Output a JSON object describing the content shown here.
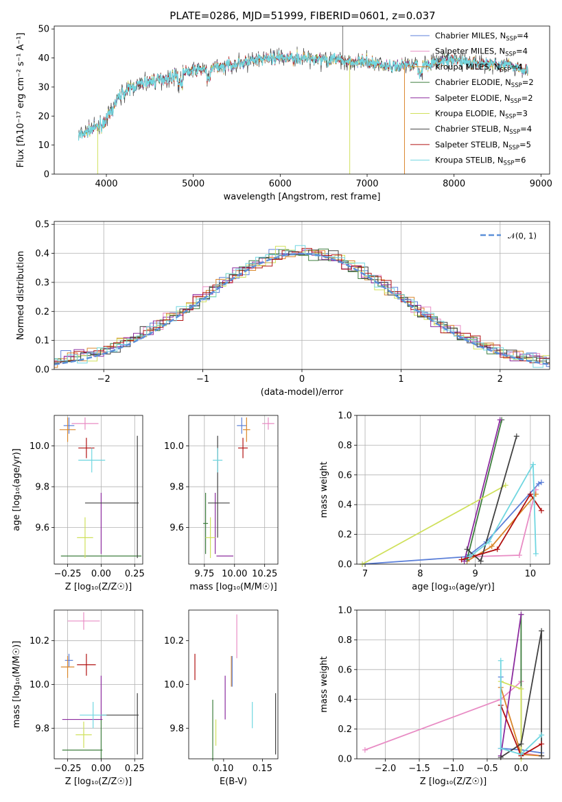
{
  "figure": {
    "title": "PLATE=0286, MJD=51999, FIBERID=0601, z=0.037"
  },
  "colors": {
    "chabrier_miles": "#5b7fd8",
    "salpeter_miles": "#e88bc4",
    "kroupa_miles": "#d9862a",
    "chabrier_elodie": "#3d7d3d",
    "salpeter_elodie": "#8b2a9e",
    "kroupa_elodie": "#cfe05a",
    "chabrier_stelib": "#404040",
    "salpeter_stelib": "#b01010",
    "kroupa_stelib": "#6fd6e0"
  },
  "chart_data": [
    {
      "id": "spectrum",
      "type": "line",
      "xlabel": "wavelength [Angstrom, rest frame]",
      "ylabel": "Flux [fλ10⁻¹⁷ erg cm⁻² s⁻¹ A⁻¹]",
      "xlim": [
        3400,
        9100
      ],
      "ylim": [
        0,
        51
      ],
      "xticks": [
        4000,
        5000,
        6000,
        7000,
        8000,
        9000
      ],
      "yticks": [
        0,
        10,
        20,
        30,
        40,
        50
      ],
      "legend_position": "top-right",
      "legend": [
        {
          "label": "Chabrier MILES, N",
          "sub": "SSP",
          "suffix": "=4",
          "color_key": "chabrier_miles"
        },
        {
          "label": "Salpeter MILES, N",
          "sub": "SSP",
          "suffix": "=4",
          "color_key": "salpeter_miles"
        },
        {
          "label": "Kroupa MILES, N",
          "sub": "SSP",
          "suffix": "=4",
          "color_key": "kroupa_miles"
        },
        {
          "label": "Chabrier ELODIE, N",
          "sub": "SSP",
          "suffix": "=2",
          "color_key": "chabrier_elodie"
        },
        {
          "label": "Salpeter ELODIE, N",
          "sub": "SSP",
          "suffix": "=2",
          "color_key": "salpeter_elodie"
        },
        {
          "label": "Kroupa ELODIE, N",
          "sub": "SSP",
          "suffix": "=3",
          "color_key": "kroupa_elodie"
        },
        {
          "label": "Chabrier STELIB, N",
          "sub": "SSP",
          "suffix": "=4",
          "color_key": "chabrier_stelib"
        },
        {
          "label": "Salpeter STELIB, N",
          "sub": "SSP",
          "suffix": "=5",
          "color_key": "salpeter_stelib"
        },
        {
          "label": "Kroupa STELIB, N",
          "sub": "SSP",
          "suffix": "=6",
          "color_key": "kroupa_stelib"
        }
      ],
      "continuum": [
        [
          3680,
          13
        ],
        [
          3800,
          15
        ],
        [
          3950,
          17
        ],
        [
          4050,
          21
        ],
        [
          4150,
          27
        ],
        [
          4300,
          30
        ],
        [
          4500,
          32
        ],
        [
          4700,
          33
        ],
        [
          4900,
          35
        ],
        [
          5100,
          36
        ],
        [
          5300,
          37
        ],
        [
          5500,
          38
        ],
        [
          5700,
          39
        ],
        [
          5900,
          40
        ],
        [
          6100,
          40
        ],
        [
          6300,
          40
        ],
        [
          6500,
          40
        ],
        [
          6700,
          39
        ],
        [
          6900,
          39
        ],
        [
          7100,
          38
        ],
        [
          7300,
          37
        ],
        [
          7500,
          38
        ],
        [
          7700,
          38
        ],
        [
          7900,
          39
        ],
        [
          8100,
          39
        ],
        [
          8300,
          38
        ],
        [
          8500,
          38
        ],
        [
          8700,
          37
        ],
        [
          8850,
          36
        ]
      ],
      "drops": [
        {
          "x": 3900,
          "color_key": "kroupa_elodie"
        },
        {
          "x": 6800,
          "color_key": "kroupa_elodie"
        },
        {
          "x": 7430,
          "color_key": "kroupa_miles"
        }
      ]
    },
    {
      "id": "residual_hist",
      "type": "bar",
      "xlabel": "(data-model)/error",
      "ylabel": "Normed distribution",
      "xlim": [
        -2.5,
        2.5
      ],
      "ylim": [
        0,
        0.51
      ],
      "xticks": [
        -2,
        -1,
        0,
        1,
        2
      ],
      "yticks": [
        0.0,
        0.1,
        0.2,
        0.3,
        0.4,
        0.5
      ],
      "legend_position": "top-right",
      "legend": [
        {
          "label": "𝒩(0, 1)",
          "style": "dashed",
          "color": "#5b8fd8"
        }
      ],
      "bin_width": 0.1
    },
    {
      "id": "age_vs_z",
      "type": "scatter",
      "xlabel": "Z [log₁₀(Z/Z☉)]",
      "ylabel": "age  [log₁₀(age/yr)]",
      "xlim": [
        -0.35,
        0.31
      ],
      "ylim": [
        9.42,
        10.15
      ],
      "xticks": [
        -0.25,
        0.0,
        0.25
      ],
      "yticks": [
        9.6,
        9.8,
        10.0
      ],
      "points": [
        {
          "color_key": "chabrier_miles",
          "x": -0.24,
          "xerr": 0.04,
          "y": 10.1,
          "yerr": 0.04
        },
        {
          "color_key": "salpeter_miles",
          "x": -0.12,
          "xerr": 0.1,
          "y": 10.11,
          "yerr": 0.03
        },
        {
          "color_key": "kroupa_miles",
          "x": -0.25,
          "xerr": 0.06,
          "y": 10.08,
          "yerr": 0.06
        },
        {
          "color_key": "chabrier_elodie",
          "x": 0.0,
          "xerr": 0.3,
          "y": 9.46,
          "yerr": 0.0
        },
        {
          "color_key": "salpeter_elodie",
          "x": 0.0,
          "xerr": 0.0,
          "y": 9.62,
          "yerr": 0.15
        },
        {
          "color_key": "kroupa_elodie",
          "x": -0.12,
          "xerr": 0.06,
          "y": 9.55,
          "yerr": 0.1
        },
        {
          "color_key": "chabrier_stelib",
          "x": 0.27,
          "xerr": 0.0,
          "y": 9.75,
          "yerr": 0.3
        },
        {
          "color_key": "chabrier_stelib",
          "x": 0.08,
          "xerr": 0.2,
          "y": 9.72,
          "yerr": 0.0
        },
        {
          "color_key": "salpeter_stelib",
          "x": -0.11,
          "xerr": 0.06,
          "y": 9.99,
          "yerr": 0.05
        },
        {
          "color_key": "kroupa_stelib",
          "x": -0.07,
          "xerr": 0.1,
          "y": 9.93,
          "yerr": 0.06
        }
      ]
    },
    {
      "id": "age_vs_mass",
      "type": "scatter",
      "xlabel": "mass [log₁₀(M/M☉)]",
      "ylabel": "",
      "xlim": [
        9.62,
        10.36
      ],
      "ylim": [
        9.42,
        10.15
      ],
      "xticks": [
        9.75,
        10.0,
        10.25
      ],
      "yticks": [
        9.6,
        9.8,
        10.0
      ],
      "points": [
        {
          "color_key": "chabrier_miles",
          "x": 10.06,
          "xerr": 0.04,
          "y": 10.1,
          "yerr": 0.04
        },
        {
          "color_key": "salpeter_miles",
          "x": 10.28,
          "xerr": 0.05,
          "y": 10.11,
          "yerr": 0.03
        },
        {
          "color_key": "kroupa_miles",
          "x": 10.1,
          "xerr": 0.03,
          "y": 10.08,
          "yerr": 0.06
        },
        {
          "color_key": "chabrier_elodie",
          "x": 9.76,
          "xerr": 0.02,
          "y": 9.62,
          "yerr": 0.15
        },
        {
          "color_key": "salpeter_elodie",
          "x": 9.92,
          "xerr": 0.07,
          "y": 9.46,
          "yerr": 0.0
        },
        {
          "color_key": "salpeter_elodie",
          "x": 9.84,
          "xerr": 0.0,
          "y": 9.62,
          "yerr": 0.15
        },
        {
          "color_key": "kroupa_elodie",
          "x": 9.8,
          "xerr": 0.04,
          "y": 9.55,
          "yerr": 0.1
        },
        {
          "color_key": "chabrier_stelib",
          "x": 9.87,
          "xerr": 0.09,
          "y": 9.72,
          "yerr": 0.0
        },
        {
          "color_key": "chabrier_stelib",
          "x": 9.86,
          "xerr": 0.0,
          "y": 9.8,
          "yerr": 0.25
        },
        {
          "color_key": "salpeter_stelib",
          "x": 10.07,
          "xerr": 0.04,
          "y": 9.99,
          "yerr": 0.05
        },
        {
          "color_key": "kroupa_stelib",
          "x": 9.86,
          "xerr": 0.04,
          "y": 9.93,
          "yerr": 0.06
        }
      ]
    },
    {
      "id": "weight_vs_age",
      "type": "line",
      "xlabel": "age  [log₁₀(age/yr)]",
      "ylabel": "mass weight",
      "xlim": [
        6.85,
        10.35
      ],
      "ylim": [
        0,
        1
      ],
      "xticks": [
        7,
        8,
        9,
        10
      ],
      "yticks": [
        0.0,
        0.2,
        0.4,
        0.6,
        0.8,
        1.0
      ],
      "series": [
        {
          "color_key": "chabrier_miles",
          "points": [
            [
              6.95,
              0.0
            ],
            [
              8.85,
              0.05
            ],
            [
              9.2,
              0.15
            ],
            [
              10.15,
              0.54
            ],
            [
              10.2,
              0.55
            ]
          ]
        },
        {
          "color_key": "salpeter_miles",
          "points": [
            [
              8.9,
              0.05
            ],
            [
              9.8,
              0.06
            ],
            [
              10.1,
              0.5
            ]
          ]
        },
        {
          "color_key": "kroupa_miles",
          "points": [
            [
              8.85,
              0.02
            ],
            [
              9.3,
              0.12
            ],
            [
              10.1,
              0.47
            ]
          ]
        },
        {
          "color_key": "chabrier_elodie",
          "points": [
            [
              8.85,
              0.03
            ],
            [
              9.48,
              0.97
            ]
          ]
        },
        {
          "color_key": "salpeter_elodie",
          "points": [
            [
              8.8,
              0.02
            ],
            [
              9.45,
              0.97
            ]
          ]
        },
        {
          "color_key": "kroupa_elodie",
          "points": [
            [
              6.95,
              0.0
            ],
            [
              9.55,
              0.53
            ]
          ]
        },
        {
          "color_key": "chabrier_stelib",
          "points": [
            [
              8.85,
              0.1
            ],
            [
              9.1,
              0.02
            ],
            [
              9.75,
              0.86
            ]
          ]
        },
        {
          "color_key": "salpeter_stelib",
          "points": [
            [
              8.75,
              0.03
            ],
            [
              9.4,
              0.1
            ],
            [
              10.0,
              0.47
            ],
            [
              10.2,
              0.36
            ]
          ]
        },
        {
          "color_key": "kroupa_stelib",
          "points": [
            [
              8.9,
              0.05
            ],
            [
              9.25,
              0.15
            ],
            [
              10.05,
              0.67
            ],
            [
              10.1,
              0.07
            ]
          ]
        }
      ]
    },
    {
      "id": "mass_vs_z",
      "type": "scatter",
      "xlabel": "Z [log₁₀(Z/Z☉)]",
      "ylabel": "mass [log₁₀(M/M☉)]",
      "xlim": [
        -0.35,
        0.31
      ],
      "ylim": [
        9.66,
        10.34
      ],
      "xticks": [
        -0.25,
        0.0,
        0.25
      ],
      "yticks": [
        9.8,
        10.0,
        10.2
      ],
      "points": [
        {
          "color_key": "chabrier_miles",
          "x": -0.24,
          "xerr": 0.03,
          "y": 10.11,
          "yerr": 0.03
        },
        {
          "color_key": "salpeter_miles",
          "x": -0.13,
          "xerr": 0.12,
          "y": 10.29,
          "yerr": 0.04
        },
        {
          "color_key": "kroupa_miles",
          "x": -0.25,
          "xerr": 0.05,
          "y": 10.08,
          "yerr": 0.05
        },
        {
          "color_key": "chabrier_elodie",
          "x": -0.14,
          "xerr": 0.15,
          "y": 9.7,
          "yerr": 0.0
        },
        {
          "color_key": "chabrier_elodie",
          "x": 0.0,
          "xerr": 0.0,
          "y": 9.76,
          "yerr": 0.1
        },
        {
          "color_key": "salpeter_elodie",
          "x": 0.0,
          "xerr": 0.0,
          "y": 9.94,
          "yerr": 0.1
        },
        {
          "color_key": "salpeter_elodie",
          "x": -0.14,
          "xerr": 0.15,
          "y": 9.84,
          "yerr": 0.0
        },
        {
          "color_key": "kroupa_elodie",
          "x": -0.13,
          "xerr": 0.06,
          "y": 9.77,
          "yerr": 0.06
        },
        {
          "color_key": "chabrier_stelib",
          "x": 0.27,
          "xerr": 0.0,
          "y": 9.82,
          "yerr": 0.14
        },
        {
          "color_key": "chabrier_stelib",
          "x": 0.14,
          "xerr": 0.14,
          "y": 9.86,
          "yerr": 0.0
        },
        {
          "color_key": "salpeter_stelib",
          "x": -0.11,
          "xerr": 0.07,
          "y": 10.09,
          "yerr": 0.05
        },
        {
          "color_key": "kroupa_stelib",
          "x": -0.06,
          "xerr": 0.1,
          "y": 9.86,
          "yerr": 0.06
        }
      ]
    },
    {
      "id": "ebv",
      "type": "scatter",
      "xlabel": "E(B-V)",
      "ylabel": "",
      "xlim": [
        0.055,
        0.17
      ],
      "ylim": [
        9.66,
        10.34
      ],
      "xticks": [
        0.1,
        0.15
      ],
      "yticks": [
        9.8,
        10.0,
        10.2
      ],
      "points": [
        {
          "color_key": "salpeter_stelib",
          "x": 0.063,
          "xerr": 0.0,
          "y": 10.08,
          "yerr": 0.06
        },
        {
          "color_key": "chabrier_elodie",
          "x": 0.086,
          "xerr": 0.0,
          "y": 9.79,
          "yerr": 0.14
        },
        {
          "color_key": "kroupa_elodie",
          "x": 0.09,
          "xerr": 0.0,
          "y": 9.78,
          "yerr": 0.06
        },
        {
          "color_key": "salpeter_elodie",
          "x": 0.102,
          "xerr": 0.0,
          "y": 9.94,
          "yerr": 0.1
        },
        {
          "color_key": "kroupa_miles",
          "x": 0.11,
          "xerr": 0.0,
          "y": 10.06,
          "yerr": 0.07
        },
        {
          "color_key": "chabrier_miles",
          "x": 0.111,
          "xerr": 0.0,
          "y": 10.06,
          "yerr": 0.07
        },
        {
          "color_key": "salpeter_miles",
          "x": 0.117,
          "xerr": 0.0,
          "y": 10.22,
          "yerr": 0.1
        },
        {
          "color_key": "kroupa_stelib",
          "x": 0.137,
          "xerr": 0.0,
          "y": 9.86,
          "yerr": 0.06
        },
        {
          "color_key": "chabrier_stelib",
          "x": 0.167,
          "xerr": 0.0,
          "y": 9.82,
          "yerr": 0.14
        }
      ]
    },
    {
      "id": "weight_vs_z",
      "type": "line",
      "xlabel": "Z [log₁₀(Z/Z☉)]",
      "ylabel": "mass weight",
      "xlim": [
        -2.42,
        0.42
      ],
      "ylim": [
        0,
        1
      ],
      "xticks": [
        -2.0,
        -1.5,
        -1.0,
        -0.5,
        0.0
      ],
      "yticks": [
        0.0,
        0.2,
        0.4,
        0.6,
        0.8,
        1.0
      ],
      "series": [
        {
          "color_key": "chabrier_miles",
          "points": [
            [
              -0.3,
              0.55
            ],
            [
              -0.3,
              0.07
            ],
            [
              0.0,
              0.06
            ],
            [
              0.3,
              0.04
            ]
          ]
        },
        {
          "color_key": "salpeter_miles",
          "points": [
            [
              -2.3,
              0.06
            ],
            [
              -0.3,
              0.4
            ],
            [
              0.0,
              0.52
            ],
            [
              0.0,
              0.04
            ],
            [
              0.3,
              0.02
            ]
          ]
        },
        {
          "color_key": "kroupa_miles",
          "points": [
            [
              -0.3,
              0.48
            ],
            [
              0.0,
              0.03
            ],
            [
              0.3,
              0.02
            ]
          ]
        },
        {
          "color_key": "chabrier_elodie",
          "points": [
            [
              0.0,
              0.97
            ],
            [
              0.0,
              0.03
            ]
          ]
        },
        {
          "color_key": "salpeter_elodie",
          "points": [
            [
              -0.3,
              0.02
            ],
            [
              0.0,
              0.97
            ]
          ]
        },
        {
          "color_key": "kroupa_elodie",
          "points": [
            [
              -0.3,
              0.52
            ],
            [
              0.0,
              0.47
            ],
            [
              0.0,
              0.0
            ]
          ]
        },
        {
          "color_key": "chabrier_stelib",
          "points": [
            [
              -0.3,
              0.01
            ],
            [
              0.0,
              0.1
            ],
            [
              0.3,
              0.86
            ],
            [
              0.3,
              0.02
            ]
          ]
        },
        {
          "color_key": "salpeter_stelib",
          "points": [
            [
              -0.3,
              0.36
            ],
            [
              0.0,
              0.02
            ],
            [
              0.3,
              0.1
            ]
          ]
        },
        {
          "color_key": "kroupa_stelib",
          "points": [
            [
              -0.3,
              0.66
            ],
            [
              -0.3,
              0.07
            ],
            [
              0.0,
              0.03
            ],
            [
              0.3,
              0.16
            ]
          ]
        }
      ]
    }
  ]
}
